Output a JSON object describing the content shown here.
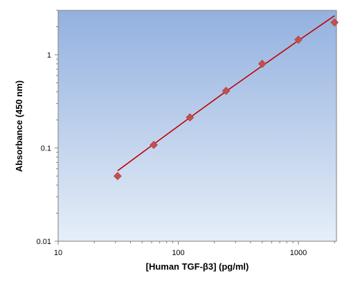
{
  "chart_data": {
    "type": "scatter",
    "title": "",
    "xlabel": "[Human TGF-β3] (pg/ml)",
    "ylabel": "Absorbance (450 nm)",
    "x_scale": "log",
    "y_scale": "log",
    "xlim": [
      10,
      2000
    ],
    "ylim": [
      0.01,
      3
    ],
    "x_ticks": [
      10,
      100,
      1000
    ],
    "x_tick_labels": [
      "10",
      "100",
      "1000"
    ],
    "y_ticks": [
      0.01,
      0.1,
      1
    ],
    "y_tick_labels": [
      "0.01",
      "0.1",
      "1"
    ],
    "grid": false,
    "legend": "none",
    "series": [
      {
        "marker": "diamond",
        "color": "#c0504d",
        "points": [
          {
            "x": 31.25,
            "y": 0.05
          },
          {
            "x": 62.5,
            "y": 0.108
          },
          {
            "x": 125,
            "y": 0.213
          },
          {
            "x": 250,
            "y": 0.41
          },
          {
            "x": 500,
            "y": 0.8
          },
          {
            "x": 1000,
            "y": 1.45
          },
          {
            "x": 2000,
            "y": 2.22
          }
        ]
      }
    ],
    "fit_line": {
      "color": "#c00000",
      "x": [
        31.25,
        62.5,
        125,
        250,
        500,
        1000,
        2000
      ],
      "y": [
        0.057,
        0.11,
        0.212,
        0.405,
        0.76,
        1.42,
        2.62
      ]
    },
    "background_gradient": [
      "#93b1df",
      "#e6eef8"
    ]
  }
}
